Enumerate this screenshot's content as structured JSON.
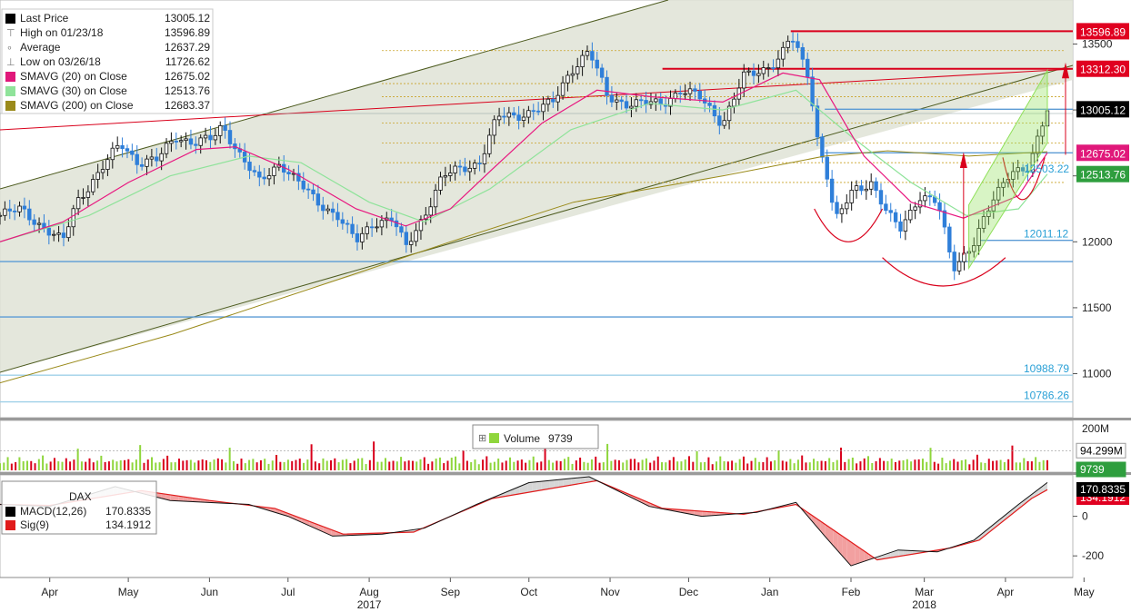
{
  "colors": {
    "background": "#ffffff",
    "channel_fill": "#dfe3d6",
    "channel_line": "#4d5b1f",
    "sma20": "#e8177f",
    "sma30": "#8fe39a",
    "sma200": "#9a8a1a",
    "candle_up": "#111111",
    "candle_down": "#2f7fd9",
    "resistance": "#d9001b",
    "support_blue": "#5b9bd5",
    "gold_dotted": "#c9a227",
    "green_channel": "#8fe05a",
    "pattern_curve": "#d9001b",
    "vol_up": "#8fd63c",
    "vol_down": "#d9001b",
    "macd_line": "#111111",
    "sig_line": "#e01b1b",
    "hist_pos": "#d6d6d6",
    "hist_neg": "#f2a0a0",
    "price_box_blue": "#1565c0",
    "price_box_black": "#000000",
    "price_box_red": "#e00020",
    "price_box_pink": "#e0187a",
    "price_box_green": "#2e9e3e"
  },
  "legend": {
    "rows": [
      {
        "icon": "black-square-icon",
        "label": "Last Price",
        "value": "13005.12",
        "color": "#000000"
      },
      {
        "icon": "high-marker-icon",
        "label": "High on 01/23/18",
        "value": "13596.89",
        "color": "#7a7a7a"
      },
      {
        "icon": "average-marker-icon",
        "label": "Average",
        "value": "12637.29",
        "color": "#7a7a7a"
      },
      {
        "icon": "low-marker-icon",
        "label": "Low on 03/26/18",
        "value": "11726.62",
        "color": "#7a7a7a"
      },
      {
        "icon": "magenta-square-icon",
        "label": "SMAVG (20) on Close",
        "value": "12675.02",
        "color": "#e0187a"
      },
      {
        "icon": "lightgreen-square-icon",
        "label": "SMAVG (30) on Close",
        "value": "12513.76",
        "color": "#8fe39a"
      },
      {
        "icon": "olive-square-icon",
        "label": "SMAVG (200) on Close",
        "value": "12683.37",
        "color": "#9a8a1a"
      }
    ]
  },
  "volume_legend": {
    "label": "Volume",
    "value": "9739"
  },
  "macd_legend": {
    "title": "DAX",
    "rows": [
      {
        "label": "MACD(12,26)",
        "value": "170.8335",
        "color": "#000000"
      },
      {
        "label": "Sig(9)",
        "value": "134.1912",
        "color": "#e01b1b"
      }
    ]
  },
  "price_axis": {
    "ticks": [
      "13500",
      "13000",
      "12500",
      "12000",
      "11500",
      "11000"
    ],
    "tick_values": [
      13500,
      13000,
      12500,
      12000,
      11500,
      11000
    ],
    "range": [
      10680,
      13820
    ],
    "boxes": [
      {
        "label": "13596.89",
        "value": 13596.89,
        "bg": "#e00020",
        "fg": "#ffffff"
      },
      {
        "label": "13312.30",
        "value": 13312.3,
        "bg": "#e00020",
        "fg": "#ffffff"
      },
      {
        "label": "13005.12",
        "value": 13005.12,
        "bg": "#000000",
        "fg": "#ffffff"
      },
      {
        "label": "12675.02",
        "value": 12675.02,
        "bg": "#e0187a",
        "fg": "#ffffff"
      },
      {
        "label": "12513.76",
        "value": 12513.76,
        "bg": "#2e9e3e",
        "fg": "#ffffff"
      }
    ],
    "level_labels": [
      {
        "label": "12503.22",
        "value": 12503.22
      },
      {
        "label": "12011.12",
        "value": 12011.12
      },
      {
        "label": "10988.79",
        "value": 10988.79
      },
      {
        "label": "10786.26",
        "value": 10786.26
      }
    ]
  },
  "volume_axis": {
    "ticks": [
      "200M"
    ],
    "tick_values": [
      200
    ],
    "range": [
      0,
      230
    ],
    "boxes": [
      {
        "label": "94.299M",
        "value": 94.299,
        "bg": "#ffffff",
        "fg": "#000000"
      },
      {
        "label": "9739",
        "value": 0.0097,
        "bg": "#2e9e3e",
        "fg": "#ffffff"
      }
    ]
  },
  "macd_axis": {
    "ticks": [
      "0",
      "-200"
    ],
    "tick_values": [
      0,
      -200
    ],
    "range": [
      -300,
      200
    ],
    "boxes": [
      {
        "label": "134.1912",
        "value": 134.1912,
        "bg": "#e00020",
        "fg": "#ffffff"
      },
      {
        "label": "170.8335",
        "value": 170.8335,
        "bg": "#000000",
        "fg": "#ffffff"
      }
    ]
  },
  "x_axis": {
    "months": [
      {
        "label": "Apr",
        "date": "2017-04-15"
      },
      {
        "label": "May",
        "date": "2017-05-15"
      },
      {
        "label": "Jun",
        "date": "2017-06-15"
      },
      {
        "label": "Jul",
        "date": "2017-07-15"
      },
      {
        "label": "Aug",
        "date": "2017-08-15"
      },
      {
        "label": "Sep",
        "date": "2017-09-15"
      },
      {
        "label": "Oct",
        "date": "2017-10-15"
      },
      {
        "label": "Nov",
        "date": "2017-11-15"
      },
      {
        "label": "Dec",
        "date": "2017-12-15"
      },
      {
        "label": "Jan",
        "date": "2018-01-15"
      },
      {
        "label": "Feb",
        "date": "2018-02-15"
      },
      {
        "label": "Mar",
        "date": "2018-03-15"
      },
      {
        "label": "Apr",
        "date": "2018-04-15"
      },
      {
        "label": "May",
        "date": "2018-05-15"
      }
    ],
    "years": [
      {
        "label": "2017",
        "date": "2017-08-15"
      },
      {
        "label": "2018",
        "date": "2018-03-15"
      }
    ]
  },
  "chart_data": {
    "type": "line",
    "security": "DAX",
    "date_range": [
      "2017-03-27",
      "2018-05-01"
    ],
    "price_series": {
      "name": "Last Price",
      "points": [
        [
          "2017-03-27",
          12200
        ],
        [
          "2017-04-04",
          12250
        ],
        [
          "2017-04-13",
          12100
        ],
        [
          "2017-04-20",
          12000
        ],
        [
          "2017-04-25",
          12300
        ],
        [
          "2017-05-03",
          12500
        ],
        [
          "2017-05-12",
          12750
        ],
        [
          "2017-05-19",
          12600
        ],
        [
          "2017-05-26",
          12620
        ],
        [
          "2017-06-02",
          12800
        ],
        [
          "2017-06-09",
          12750
        ],
        [
          "2017-06-16",
          12780
        ],
        [
          "2017-06-20",
          12880
        ],
        [
          "2017-06-27",
          12650
        ],
        [
          "2017-07-04",
          12450
        ],
        [
          "2017-07-12",
          12600
        ],
        [
          "2017-07-19",
          12450
        ],
        [
          "2017-07-26",
          12300
        ],
        [
          "2017-08-03",
          12200
        ],
        [
          "2017-08-10",
          12000
        ],
        [
          "2017-08-17",
          12150
        ],
        [
          "2017-08-24",
          12180
        ],
        [
          "2017-08-29",
          11950
        ],
        [
          "2017-09-05",
          12200
        ],
        [
          "2017-09-12",
          12500
        ],
        [
          "2017-09-19",
          12550
        ],
        [
          "2017-09-26",
          12600
        ],
        [
          "2017-10-03",
          12950
        ],
        [
          "2017-10-10",
          12950
        ],
        [
          "2017-10-17",
          13000
        ],
        [
          "2017-10-24",
          13050
        ],
        [
          "2017-10-31",
          13300
        ],
        [
          "2017-11-07",
          13450
        ],
        [
          "2017-11-14",
          13100
        ],
        [
          "2017-11-21",
          13050
        ],
        [
          "2017-11-28",
          13050
        ],
        [
          "2017-12-05",
          13050
        ],
        [
          "2017-12-12",
          13150
        ],
        [
          "2017-12-19",
          13100
        ],
        [
          "2017-12-28",
          12900
        ],
        [
          "2018-01-05",
          13250
        ],
        [
          "2018-01-12",
          13300
        ],
        [
          "2018-01-19",
          13400
        ],
        [
          "2018-01-23",
          13560
        ],
        [
          "2018-01-30",
          13250
        ],
        [
          "2018-02-02",
          12800
        ],
        [
          "2018-02-06",
          12500
        ],
        [
          "2018-02-09",
          12150
        ],
        [
          "2018-02-16",
          12400
        ],
        [
          "2018-02-23",
          12450
        ],
        [
          "2018-03-01",
          12200
        ],
        [
          "2018-03-06",
          12100
        ],
        [
          "2018-03-13",
          12350
        ],
        [
          "2018-03-20",
          12300
        ],
        [
          "2018-03-26",
          11800
        ],
        [
          "2018-04-03",
          12000
        ],
        [
          "2018-04-10",
          12300
        ],
        [
          "2018-04-17",
          12550
        ],
        [
          "2018-04-24",
          12550
        ],
        [
          "2018-05-01",
          13005.12
        ]
      ]
    },
    "sma20": {
      "name": "SMAVG (20) on Close",
      "points": [
        [
          "2017-03-27",
          12000
        ],
        [
          "2017-04-20",
          12150
        ],
        [
          "2017-05-15",
          12450
        ],
        [
          "2017-06-10",
          12700
        ],
        [
          "2017-06-25",
          12720
        ],
        [
          "2017-07-15",
          12550
        ],
        [
          "2017-08-10",
          12250
        ],
        [
          "2017-08-29",
          12120
        ],
        [
          "2017-09-15",
          12250
        ],
        [
          "2017-10-01",
          12550
        ],
        [
          "2017-10-20",
          12900
        ],
        [
          "2017-11-10",
          13150
        ],
        [
          "2017-12-01",
          13100
        ],
        [
          "2017-12-28",
          13060
        ],
        [
          "2018-01-20",
          13280
        ],
        [
          "2018-02-03",
          13230
        ],
        [
          "2018-02-20",
          12650
        ],
        [
          "2018-03-10",
          12300
        ],
        [
          "2018-03-30",
          12180
        ],
        [
          "2018-04-20",
          12350
        ],
        [
          "2018-05-01",
          12675.02
        ]
      ]
    },
    "sma30": {
      "name": "SMAVG (30) on Close",
      "points": [
        [
          "2017-03-27",
          12000
        ],
        [
          "2017-04-30",
          12200
        ],
        [
          "2017-05-31",
          12500
        ],
        [
          "2017-06-30",
          12650
        ],
        [
          "2017-07-20",
          12600
        ],
        [
          "2017-08-15",
          12300
        ],
        [
          "2017-09-05",
          12150
        ],
        [
          "2017-09-30",
          12400
        ],
        [
          "2017-10-31",
          12850
        ],
        [
          "2017-11-30",
          13050
        ],
        [
          "2017-12-28",
          13000
        ],
        [
          "2018-01-25",
          13150
        ],
        [
          "2018-02-15",
          12800
        ],
        [
          "2018-03-10",
          12450
        ],
        [
          "2018-03-31",
          12200
        ],
        [
          "2018-04-20",
          12250
        ],
        [
          "2018-05-01",
          12513.76
        ]
      ]
    },
    "sma200": {
      "name": "SMAVG (200) on Close",
      "points": [
        [
          "2017-03-27",
          10930
        ],
        [
          "2017-06-01",
          11300
        ],
        [
          "2017-08-01",
          11700
        ],
        [
          "2017-09-15",
          12000
        ],
        [
          "2017-11-01",
          12300
        ],
        [
          "2017-12-28",
          12500
        ],
        [
          "2018-02-05",
          12650
        ],
        [
          "2018-03-01",
          12690
        ],
        [
          "2018-04-01",
          12650
        ],
        [
          "2018-05-01",
          12683.37
        ]
      ]
    },
    "macd": {
      "name": "MACD(12,26)",
      "points": [
        [
          "2017-03-27",
          60
        ],
        [
          "2017-04-15",
          50
        ],
        [
          "2017-05-10",
          150
        ],
        [
          "2017-05-31",
          80
        ],
        [
          "2017-06-30",
          60
        ],
        [
          "2017-07-15",
          0
        ],
        [
          "2017-08-01",
          -100
        ],
        [
          "2017-08-20",
          -90
        ],
        [
          "2017-09-05",
          -60
        ],
        [
          "2017-09-25",
          60
        ],
        [
          "2017-10-15",
          170
        ],
        [
          "2017-11-07",
          200
        ],
        [
          "2017-11-30",
          50
        ],
        [
          "2017-12-20",
          0
        ],
        [
          "2018-01-10",
          20
        ],
        [
          "2018-01-25",
          70
        ],
        [
          "2018-02-05",
          -100
        ],
        [
          "2018-02-15",
          -250
        ],
        [
          "2018-03-05",
          -170
        ],
        [
          "2018-03-20",
          -180
        ],
        [
          "2018-04-03",
          -120
        ],
        [
          "2018-04-20",
          60
        ],
        [
          "2018-05-01",
          170.8335
        ]
      ]
    },
    "sig": {
      "name": "Sig(9)",
      "points": [
        [
          "2017-03-27",
          60
        ],
        [
          "2017-04-15",
          55
        ],
        [
          "2017-05-20",
          130
        ],
        [
          "2017-06-15",
          80
        ],
        [
          "2017-07-10",
          40
        ],
        [
          "2017-08-05",
          -90
        ],
        [
          "2017-09-01",
          -80
        ],
        [
          "2017-10-01",
          90
        ],
        [
          "2017-11-10",
          180
        ],
        [
          "2017-12-05",
          40
        ],
        [
          "2018-01-05",
          10
        ],
        [
          "2018-01-25",
          60
        ],
        [
          "2018-02-25",
          -220
        ],
        [
          "2018-03-25",
          -160
        ],
        [
          "2018-04-05",
          -120
        ],
        [
          "2018-04-25",
          90
        ],
        [
          "2018-05-01",
          134.1912
        ]
      ]
    },
    "volume_samples_M": [
      40,
      35,
      55,
      30,
      45,
      60,
      38,
      42,
      50,
      33,
      47,
      65,
      36,
      41,
      52,
      39,
      44,
      58,
      37,
      46,
      110,
      43,
      36,
      51,
      40,
      48,
      62,
      35,
      44,
      53,
      38,
      42,
      49,
      57,
      34,
      45,
      120,
      39,
      47,
      55,
      36,
      43,
      50,
      61,
      37,
      44,
      52,
      40,
      46,
      58,
      35,
      41,
      49,
      56,
      38,
      45,
      53,
      60,
      36,
      94.299
    ],
    "horizontal_levels": [
      {
        "value": 13596.89,
        "color": "#d9001b",
        "start": "2018-01-23"
      },
      {
        "value": 13312.3,
        "color": "#d9001b",
        "start": "2017-12-05"
      },
      {
        "value": 13005.12,
        "color": "#5b9bd5",
        "start": "2018-02-05"
      },
      {
        "value": 12675.02,
        "color": "#5b9bd5",
        "start": "2018-02-05"
      },
      {
        "value": 12011.12,
        "color": "#5b9bd5",
        "start": "2018-04-05"
      },
      {
        "value": 11850,
        "color": "#5b9bd5",
        "start": "2017-03-27"
      },
      {
        "value": 11430,
        "color": "#5b9bd5",
        "start": "2017-03-27"
      },
      {
        "value": 10988.79,
        "color": "#9fd0e8",
        "start": "2017-03-27"
      },
      {
        "value": 10786.26,
        "color": "#9fd0e8",
        "start": "2017-03-27"
      }
    ]
  }
}
